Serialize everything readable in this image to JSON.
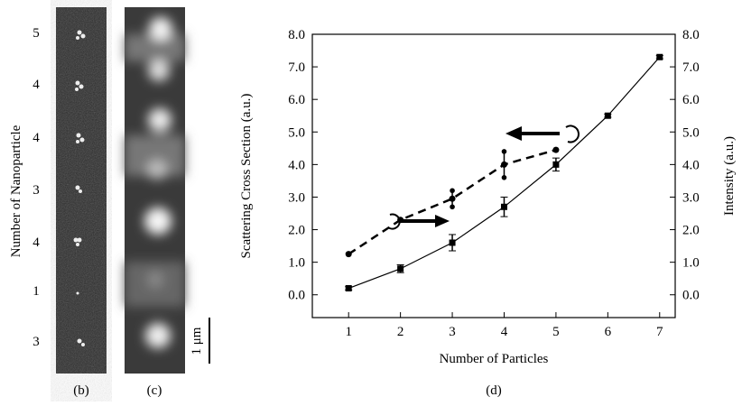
{
  "figure": {
    "ylabel": "Number of Nanoparticle",
    "counts": [
      "5",
      "4",
      "4",
      "3",
      "4",
      "1",
      "3"
    ],
    "scale_bar": "1 μm",
    "panel_b": "(b)",
    "panel_c": "(c)",
    "panel_d": "(d)"
  },
  "chart_data": {
    "type": "line",
    "ylabel": "Scattering Cross Section (a.u.)",
    "y2label": "Intensity (a.u.)",
    "xlabel": "Number of Particles",
    "xlim": [
      0.3,
      7.3
    ],
    "xticks": [
      1,
      2,
      3,
      4,
      5,
      6,
      7
    ],
    "ylim": [
      -0.7,
      8.0
    ],
    "yticks": [
      {
        "value": 0,
        "label": "0.0"
      },
      {
        "value": 1,
        "label": "1.0"
      },
      {
        "value": 2,
        "label": "2.0"
      },
      {
        "value": 3,
        "label": "3.0"
      },
      {
        "value": 4,
        "label": "4.0"
      },
      {
        "value": 5,
        "label": "5.0"
      },
      {
        "value": 6,
        "label": "6.0"
      },
      {
        "value": 7,
        "label": "7.0"
      },
      {
        "value": 8,
        "label": "8.0"
      }
    ],
    "y2lim": [
      -0.7,
      8.0
    ],
    "y2ticks": [
      {
        "value": 0,
        "label": "0.0"
      },
      {
        "value": 1,
        "label": "1.0"
      },
      {
        "value": 2,
        "label": "2.0"
      },
      {
        "value": 3,
        "label": "3.0"
      },
      {
        "value": 4,
        "label": "4.0"
      },
      {
        "value": 5,
        "label": "5.0"
      },
      {
        "value": 6,
        "label": "6.0"
      },
      {
        "value": 7,
        "label": "7.0"
      },
      {
        "value": 8,
        "label": "8.0"
      }
    ],
    "series": [
      {
        "color": "#000000",
        "marker": "square",
        "dash": false,
        "x": [
          1,
          2,
          3,
          4,
          5,
          6,
          7
        ],
        "values": [
          0.2,
          0.8,
          1.6,
          2.7,
          4.0,
          5.5,
          7.3
        ],
        "errors": [
          0.05,
          0.12,
          0.25,
          0.3,
          0.2,
          0.05,
          0.05
        ]
      },
      {
        "color": "#000000",
        "marker": "circle",
        "dash": true,
        "axis": "y2",
        "x": [
          1,
          2,
          3,
          4,
          5
        ],
        "values": [
          1.25,
          2.3,
          2.95,
          4.0,
          4.45
        ],
        "errors": [
          0,
          0,
          0.25,
          0.4,
          0
        ]
      }
    ]
  }
}
